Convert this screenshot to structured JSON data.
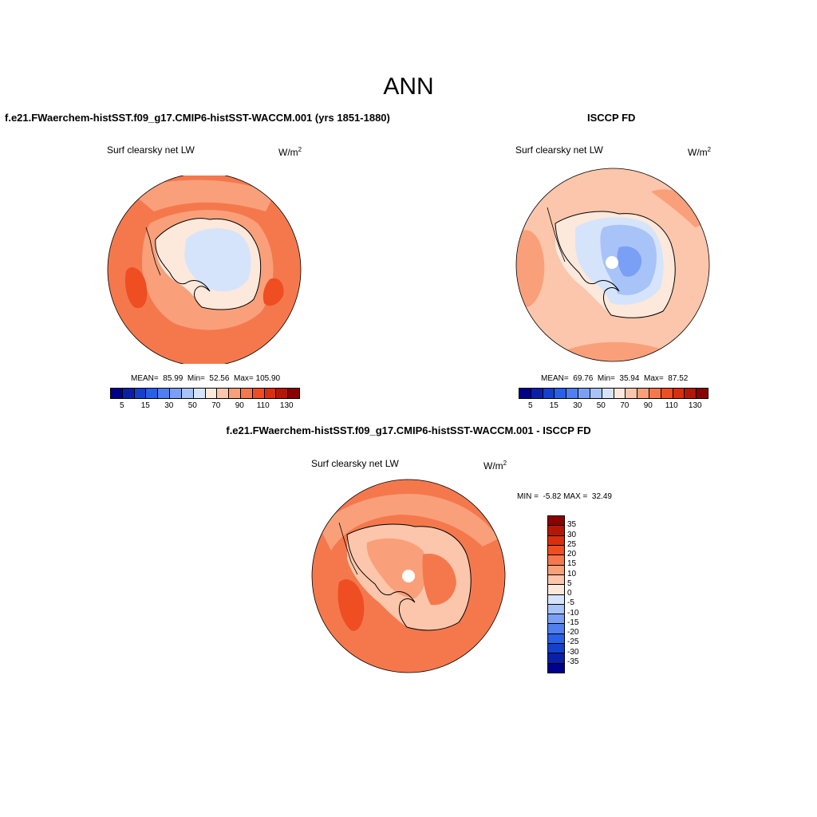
{
  "main_title": "ANN",
  "panels": {
    "model": {
      "title": "f.e21.FWaerchem-histSST.f09_g17.CMIP6-histSST-WACCM.001 (yrs 1851-1880)",
      "var": "Surf clearsky net LW",
      "units": "W/m",
      "units_sup": "2",
      "mean_label": "MEAN=",
      "mean": "85.99",
      "min_label": "Min=",
      "min": "52.56",
      "max_label": "Max=",
      "max": "105.90"
    },
    "obs": {
      "title": "ISCCP FD",
      "var": "Surf clearsky net LW",
      "units": "W/m",
      "units_sup": "2",
      "mean_label": "MEAN=",
      "mean": "69.76",
      "min_label": "Min=",
      "min": "35.94",
      "max_label": "Max=",
      "max": "87.52"
    },
    "diff": {
      "title": "f.e21.FWaerchem-histSST.f09_g17.CMIP6-histSST-WACCM.001 - ISCCP FD",
      "var": "Surf clearsky net LW",
      "units": "W/m",
      "units_sup": "2",
      "minmax": "MIN =  -5.82 MAX =  32.49"
    }
  },
  "colorbar_abs": {
    "colors": [
      "#00008b",
      "#0a1fa8",
      "#1540cc",
      "#2a5fe8",
      "#4f7ff0",
      "#7aa0f5",
      "#a8c3f8",
      "#d5e4fb",
      "#fde8dc",
      "#fbc6ab",
      "#f9a07a",
      "#f5784d",
      "#ee4e22",
      "#d8300f",
      "#b31806",
      "#8b0000"
    ],
    "labels": [
      "5",
      "15",
      "30",
      "50",
      "70",
      "90",
      "110",
      "130"
    ]
  },
  "colorbar_diff": {
    "colors": [
      "#8b0000",
      "#b31806",
      "#d8300f",
      "#ee4e22",
      "#f5784d",
      "#f9a07a",
      "#fbc6ab",
      "#fde8dc",
      "#d5e4fb",
      "#a8c3f8",
      "#7aa0f5",
      "#4f7ff0",
      "#2a5fe8",
      "#1540cc",
      "#0a1fa8",
      "#00008b"
    ],
    "labels": [
      "35",
      "30",
      "25",
      "20",
      "15",
      "10",
      "5",
      "0",
      "-5",
      "-10",
      "-15",
      "-20",
      "-25",
      "-30",
      "-35"
    ]
  },
  "map_colors": {
    "ocean_model": "#f5784d",
    "ocean_model_inner": "#f9a07a",
    "ocean_model_hot": "#ee4e22",
    "ocean_obs": "#fbc6ab",
    "ocean_obs_edge": "#f9a07a",
    "land_low": "#d5e4fb",
    "land_lower": "#a8c3f8",
    "land_lowest": "#7aa0f5",
    "land_mid": "#fde8dc",
    "diff_ocean": "#f5784d",
    "diff_inner": "#f9a07a",
    "diff_hot": "#ee4e22",
    "diff_land": "#fbc6ab"
  }
}
